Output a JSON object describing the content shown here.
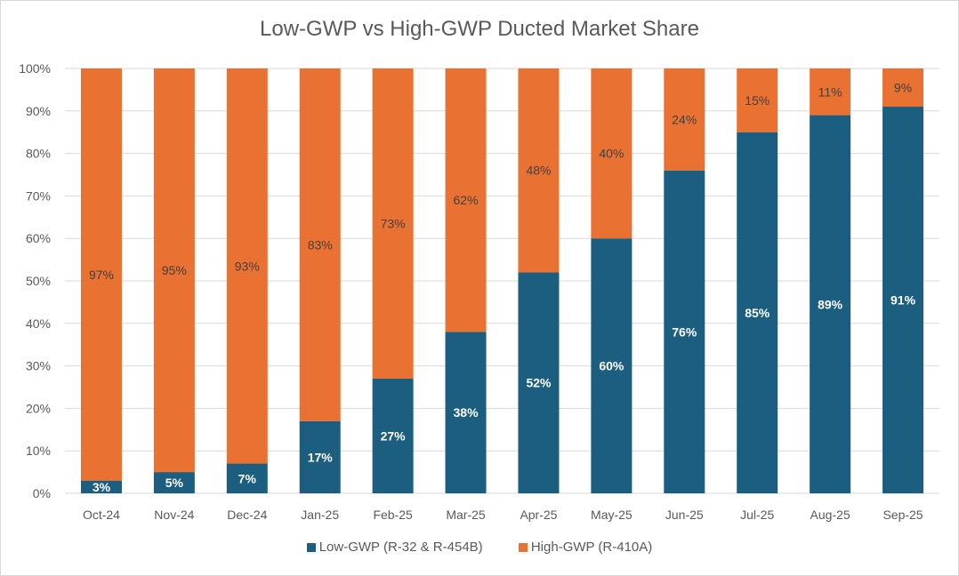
{
  "chart_data": {
    "type": "bar",
    "stacked": true,
    "title": "Low-GWP vs High-GWP Ducted Market Share",
    "categories": [
      "Oct-24",
      "Nov-24",
      "Dec-24",
      "Jan-25",
      "Feb-25",
      "Mar-25",
      "Apr-25",
      "May-25",
      "Jun-25",
      "Jul-25",
      "Aug-25",
      "Sep-25"
    ],
    "series": [
      {
        "name": "Low-GWP (R-32 & R-454B)",
        "color": "#1b5e80",
        "values": [
          3,
          5,
          7,
          17,
          27,
          38,
          52,
          60,
          76,
          85,
          89,
          91
        ]
      },
      {
        "name": "High-GWP (R-410A)",
        "color": "#e97132",
        "values": [
          97,
          95,
          93,
          83,
          73,
          62,
          48,
          40,
          24,
          15,
          11,
          9
        ]
      }
    ],
    "ylim": [
      0,
      100
    ],
    "yticks": [
      "0%",
      "10%",
      "20%",
      "30%",
      "40%",
      "50%",
      "60%",
      "70%",
      "80%",
      "90%",
      "100%"
    ],
    "grid": true,
    "legend": "bottom",
    "data_labels": true
  }
}
